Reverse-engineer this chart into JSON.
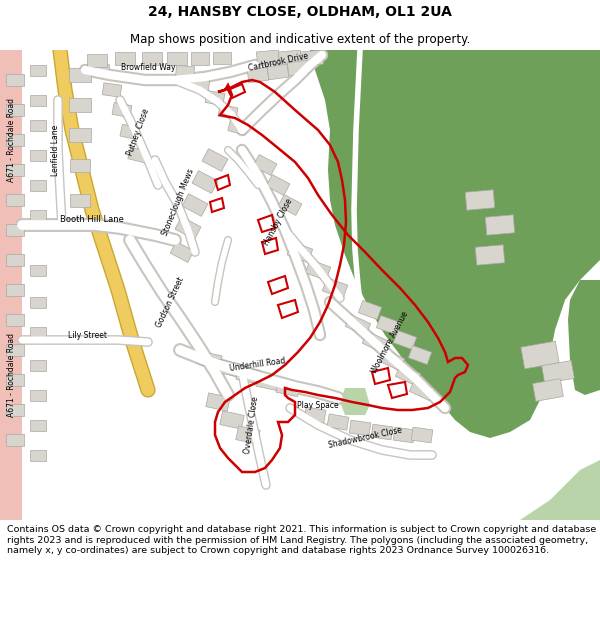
{
  "title": "24, HANSBY CLOSE, OLDHAM, OL1 2UA",
  "subtitle": "Map shows position and indicative extent of the property.",
  "footer": "Contains OS data © Crown copyright and database right 2021. This information is subject to Crown copyright and database rights 2023 and is reproduced with the permission of HM Land Registry. The polygons (including the associated geometry, namely x, y co-ordinates) are subject to Crown copyright and database rights 2023 Ordnance Survey 100026316.",
  "bg_color": "#f0ece6",
  "road_color": "#ffffff",
  "road_outline": "#c8c4be",
  "building_color": "#d8d4ce",
  "building_outline": "#aaa8a4",
  "green_dark": "#6fa05a",
  "green_light": "#b8d4a8",
  "road_a_color": "#f0cc60",
  "road_a_outline": "#c8a830",
  "pink_color": "#f0c0b8",
  "red_boundary": "#cc0000",
  "title_fontsize": 10,
  "subtitle_fontsize": 8.5,
  "footer_fontsize": 6.8
}
